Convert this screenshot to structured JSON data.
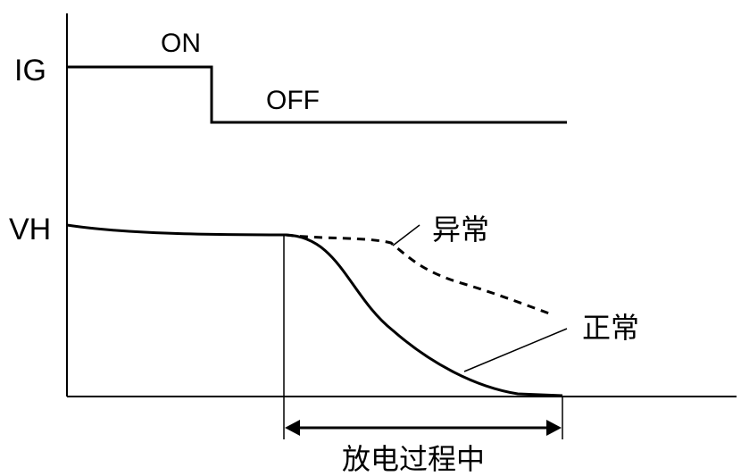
{
  "signals": {
    "ig": {
      "name": "IG",
      "state_on": "ON",
      "state_off": "OFF"
    },
    "vh": {
      "name": "VH",
      "abnormal_label": "异常",
      "normal_label": "正常"
    }
  },
  "annotation": {
    "discharge_label": "放电过程中"
  },
  "colors": {
    "line": "#000000",
    "background": "#ffffff"
  }
}
